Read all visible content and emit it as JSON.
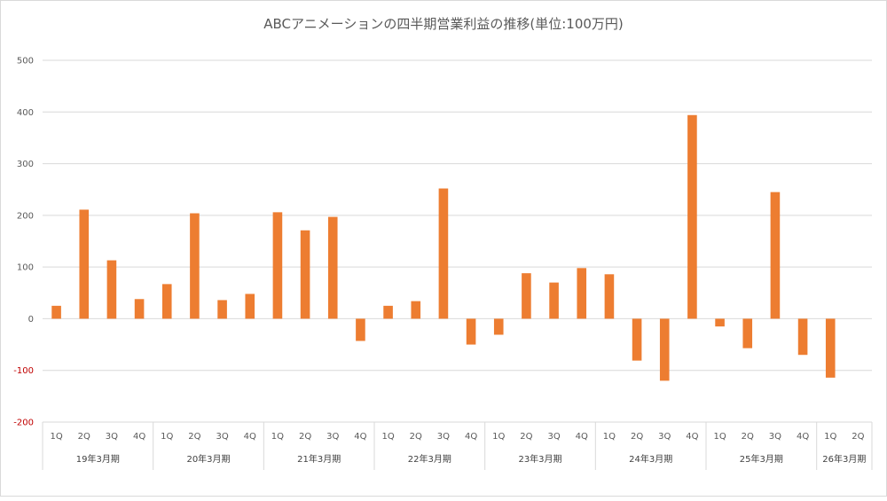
{
  "chart_data": {
    "type": "bar",
    "title": "ABCアニメーションの四半期営業利益の推移(単位:100万円)",
    "xlabel": "",
    "ylabel": "",
    "ylim": [
      -200,
      500
    ],
    "yticks": [
      500,
      400,
      300,
      200,
      100,
      0,
      -100,
      -200
    ],
    "grid": true,
    "legend": "none",
    "bar_color": "#ed7d31",
    "negative_tick_color": "#c00000",
    "groups": [
      {
        "label": "19年3月期",
        "quarters": [
          "1Q",
          "2Q",
          "3Q",
          "4Q"
        ],
        "values": [
          25,
          211,
          113,
          38
        ]
      },
      {
        "label": "20年3月期",
        "quarters": [
          "1Q",
          "2Q",
          "3Q",
          "4Q"
        ],
        "values": [
          67,
          204,
          36,
          48
        ]
      },
      {
        "label": "21年3月期",
        "quarters": [
          "1Q",
          "2Q",
          "3Q",
          "4Q"
        ],
        "values": [
          206,
          171,
          197,
          -43
        ]
      },
      {
        "label": "22年3月期",
        "quarters": [
          "1Q",
          "2Q",
          "3Q",
          "4Q"
        ],
        "values": [
          25,
          34,
          252,
          -50
        ]
      },
      {
        "label": "23年3月期",
        "quarters": [
          "1Q",
          "2Q",
          "3Q",
          "4Q"
        ],
        "values": [
          -31,
          88,
          70,
          98
        ]
      },
      {
        "label": "24年3月期",
        "quarters": [
          "1Q",
          "2Q",
          "3Q",
          "4Q"
        ],
        "values": [
          86,
          -81,
          -120,
          394
        ]
      },
      {
        "label": "25年3月期",
        "quarters": [
          "1Q",
          "2Q",
          "3Q",
          "4Q"
        ],
        "values": [
          -15,
          -57,
          245,
          -70
        ]
      },
      {
        "label": "26年3月期",
        "quarters": [
          "1Q",
          "2Q"
        ],
        "values": [
          -114,
          null
        ]
      }
    ]
  }
}
